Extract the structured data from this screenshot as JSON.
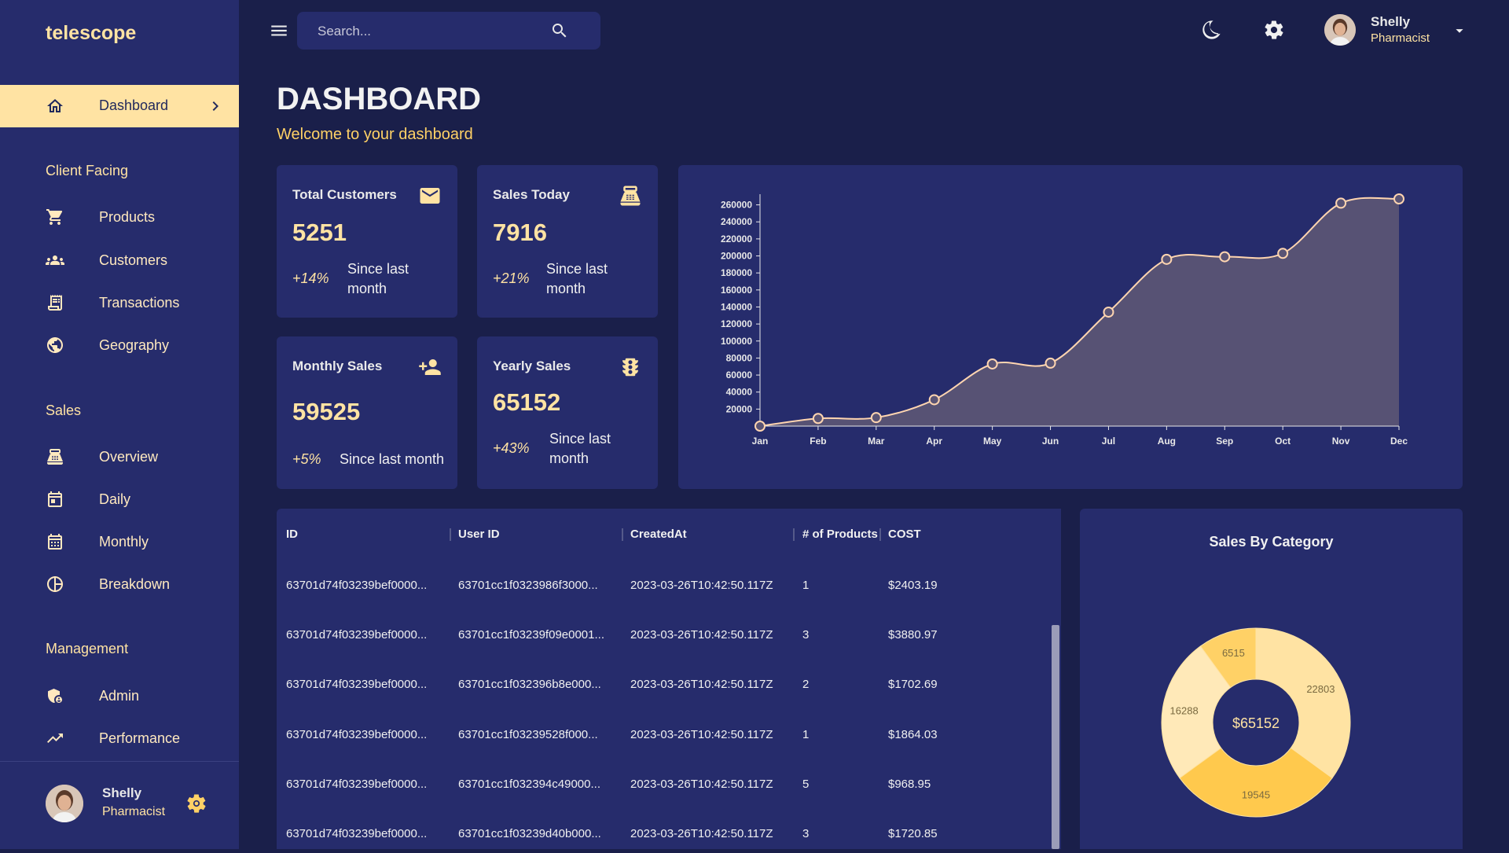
{
  "app": {
    "brand": "telescope"
  },
  "sidebar": {
    "active": {
      "label": "Dashboard"
    },
    "sections": [
      {
        "label": "Client Facing"
      },
      {
        "label": "Sales"
      },
      {
        "label": "Management"
      }
    ],
    "items": [
      {
        "label": "Products",
        "icon": "shopping-cart-icon"
      },
      {
        "label": "Customers",
        "icon": "groups-icon"
      },
      {
        "label": "Transactions",
        "icon": "receipt-icon"
      },
      {
        "label": "Geography",
        "icon": "globe-icon"
      },
      {
        "label": "Overview",
        "icon": "point-of-sale-icon"
      },
      {
        "label": "Daily",
        "icon": "calendar-today-icon"
      },
      {
        "label": "Monthly",
        "icon": "calendar-month-icon"
      },
      {
        "label": "Breakdown",
        "icon": "pie-chart-icon"
      },
      {
        "label": "Admin",
        "icon": "admin-icon"
      },
      {
        "label": "Performance",
        "icon": "trending-up-icon"
      }
    ],
    "user": {
      "name": "Shelly",
      "role": "Pharmacist"
    }
  },
  "topbar": {
    "search_placeholder": "Search...",
    "user": {
      "name": "Shelly",
      "role": "Pharmacist"
    }
  },
  "header": {
    "title": "DASHBOARD",
    "subtitle": "Welcome to your dashboard"
  },
  "stats": [
    {
      "title": "Total Customers",
      "value": "5251",
      "change": "+14%",
      "since": "Since last month",
      "icon": "email-icon"
    },
    {
      "title": "Sales Today",
      "value": "7916",
      "change": "+21%",
      "since": "Since last month",
      "icon": "point-of-sale-icon"
    },
    {
      "title": "Monthly Sales",
      "value": "59525",
      "change": "+5%",
      "since": "Since last month",
      "icon": "person-add-icon"
    },
    {
      "title": "Yearly Sales",
      "value": "65152",
      "change": "+43%",
      "since": "Since last month",
      "icon": "traffic-icon"
    }
  ],
  "table": {
    "columns": [
      "ID",
      "User ID",
      "CreatedAt",
      "# of Products",
      "COST"
    ],
    "rows": [
      [
        "63701d74f03239bef0000...",
        "63701cc1f0323986f3000...",
        "2023-03-26T10:42:50.117Z",
        "1",
        "$2403.19"
      ],
      [
        "63701d74f03239bef0000...",
        "63701cc1f03239f09e0001...",
        "2023-03-26T10:42:50.117Z",
        "3",
        "$3880.97"
      ],
      [
        "63701d74f03239bef0000...",
        "63701cc1f032396b8e000...",
        "2023-03-26T10:42:50.117Z",
        "2",
        "$1702.69"
      ],
      [
        "63701d74f03239bef0000...",
        "63701cc1f03239528f000...",
        "2023-03-26T10:42:50.117Z",
        "1",
        "$1864.03"
      ],
      [
        "63701d74f03239bef0000...",
        "63701cc1f032394c49000...",
        "2023-03-26T10:42:50.117Z",
        "5",
        "$968.95"
      ],
      [
        "63701d74f03239bef0000...",
        "63701cc1f03239d40b000...",
        "2023-03-26T10:42:50.117Z",
        "3",
        "$1720.85"
      ]
    ]
  },
  "pie": {
    "title": "Sales By Category",
    "center": "$65152"
  },
  "colors": {
    "bg": "#1a1f4a",
    "panel": "#262c6c",
    "accent": "#ffe3a3",
    "accent_strong": "#ffd166"
  },
  "chart_data": [
    {
      "type": "area",
      "x": [
        "Jan",
        "Feb",
        "Mar",
        "Apr",
        "May",
        "Jun",
        "Jul",
        "Aug",
        "Sep",
        "Oct",
        "Nov",
        "Dec"
      ],
      "values": [
        0,
        9000,
        10000,
        31000,
        73000,
        74000,
        134000,
        196000,
        199000,
        203000,
        262000,
        267000
      ],
      "yticks": [
        20000,
        40000,
        60000,
        80000,
        100000,
        120000,
        140000,
        160000,
        180000,
        200000,
        220000,
        240000,
        260000
      ],
      "ylim": [
        0,
        267000
      ],
      "grid": false
    },
    {
      "type": "pie",
      "title": "Sales By Category",
      "center_label": "$65152",
      "slices": [
        {
          "value": 22803,
          "color": "#ffe3a3"
        },
        {
          "value": 19545,
          "color": "#ffc94d"
        },
        {
          "value": 16288,
          "color": "#ffe9b8"
        },
        {
          "value": 6515,
          "color": "#ffd166"
        }
      ]
    }
  ]
}
